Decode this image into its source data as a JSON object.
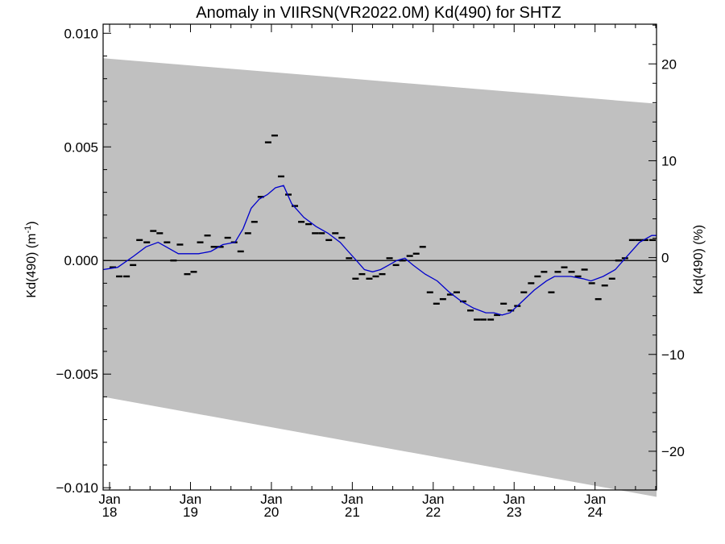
{
  "chart_data": {
    "type": "line",
    "title": "Anomaly in VIIRSN(VR2022.0M) Kd(490) for SHTZ",
    "ylabel_left": "Kd(490) (m",
    "ylabel_left_sup": "-1",
    "ylabel_left_close": ")",
    "ylabel_right": "Kd(490) (%)",
    "ylim_left": [
      -0.0101,
      0.0104
    ],
    "ylim_right": [
      -24.0,
      24.1
    ],
    "grid": false,
    "x_ticks": [
      {
        "t": 2018.0,
        "month": "Jan",
        "year": "18"
      },
      {
        "t": 2019.0,
        "month": "Jan",
        "year": "19"
      },
      {
        "t": 2020.0,
        "month": "Jan",
        "year": "20"
      },
      {
        "t": 2021.0,
        "month": "Jan",
        "year": "21"
      },
      {
        "t": 2022.0,
        "month": "Jan",
        "year": "22"
      },
      {
        "t": 2023.0,
        "month": "Jan",
        "year": "23"
      },
      {
        "t": 2024.0,
        "month": "Jan",
        "year": "24"
      }
    ],
    "x_range": [
      2017.92,
      2024.76
    ],
    "y_left_ticks": [
      {
        "v": 0.01,
        "label": "0.010"
      },
      {
        "v": 0.005,
        "label": "0.005"
      },
      {
        "v": 0.0,
        "label": "0.000"
      },
      {
        "v": -0.005,
        "label": "−0.005"
      },
      {
        "v": -0.01,
        "label": "−0.010"
      }
    ],
    "y_right_ticks": [
      {
        "v": 20,
        "label": "20"
      },
      {
        "v": 10,
        "label": "10"
      },
      {
        "v": 0,
        "label": "0"
      },
      {
        "v": -10,
        "label": "−10"
      },
      {
        "v": -20,
        "label": "−20"
      }
    ],
    "band": {
      "color": "#c0c0c0",
      "upper": [
        [
          2017.92,
          0.0089
        ],
        [
          2024.76,
          0.0069
        ]
      ],
      "lower": [
        [
          2017.92,
          -0.006
        ],
        [
          2024.76,
          -0.0104
        ]
      ]
    },
    "zero_line": 0.0,
    "monthly_anomaly": {
      "color": "#000000",
      "x": [
        2018.04,
        2018.12,
        2018.21,
        2018.29,
        2018.37,
        2018.46,
        2018.54,
        2018.62,
        2018.71,
        2018.79,
        2018.87,
        2018.96,
        2019.04,
        2019.12,
        2019.21,
        2019.29,
        2019.37,
        2019.46,
        2019.54,
        2019.62,
        2019.71,
        2019.79,
        2019.87,
        2019.96,
        2020.04,
        2020.12,
        2020.21,
        2020.29,
        2020.37,
        2020.46,
        2020.54,
        2020.62,
        2020.71,
        2020.79,
        2020.87,
        2020.96,
        2021.04,
        2021.12,
        2021.21,
        2021.29,
        2021.37,
        2021.46,
        2021.54,
        2021.62,
        2021.71,
        2021.79,
        2021.87,
        2021.96,
        2022.04,
        2022.12,
        2022.21,
        2022.29,
        2022.37,
        2022.46,
        2022.54,
        2022.62,
        2022.71,
        2022.79,
        2022.87,
        2022.96,
        2023.04,
        2023.12,
        2023.21,
        2023.29,
        2023.37,
        2023.46,
        2023.54,
        2023.62,
        2023.71,
        2023.79,
        2023.87,
        2023.96,
        2024.04,
        2024.12,
        2024.21,
        2024.29,
        2024.37,
        2024.46,
        2024.54,
        2024.62,
        2024.71
      ],
      "y": [
        -0.0003,
        -0.0007,
        -0.0007,
        -0.0002,
        0.0009,
        0.0008,
        0.0013,
        0.0012,
        0.0008,
        0.0,
        0.0007,
        -0.0006,
        -0.0005,
        0.0008,
        0.0011,
        0.0006,
        0.0006,
        0.001,
        0.0008,
        0.0004,
        0.0012,
        0.0017,
        0.0028,
        0.0052,
        0.0055,
        0.0037,
        0.0029,
        0.0024,
        0.0017,
        0.0016,
        0.0012,
        0.0012,
        0.0009,
        0.0012,
        0.001,
        0.0001,
        -0.0008,
        -0.0006,
        -0.0008,
        -0.0007,
        -0.0006,
        0.0001,
        -0.0002,
        0.0,
        0.0002,
        0.0003,
        0.0006,
        -0.0014,
        -0.0019,
        -0.0017,
        -0.0015,
        -0.0014,
        -0.0018,
        -0.0022,
        -0.0026,
        -0.0026,
        -0.0026,
        -0.0024,
        -0.0019,
        -0.0022,
        -0.002,
        -0.0014,
        -0.001,
        -0.0007,
        -0.0005,
        -0.0014,
        -0.0005,
        -0.0003,
        -0.0005,
        -0.0007,
        -0.0004,
        -0.001,
        -0.0017,
        -0.0011,
        -0.0008,
        -0.0,
        0.0001,
        0.0009,
        0.0009,
        0.0009,
        0.0009
      ]
    },
    "smoothed": {
      "color": "#0000cc",
      "x": [
        2017.92,
        2018.1,
        2018.3,
        2018.45,
        2018.6,
        2018.7,
        2018.85,
        2019.0,
        2019.1,
        2019.25,
        2019.4,
        2019.55,
        2019.65,
        2019.75,
        2019.85,
        2019.95,
        2020.05,
        2020.15,
        2020.25,
        2020.4,
        2020.55,
        2020.7,
        2020.85,
        2020.95,
        2021.05,
        2021.15,
        2021.25,
        2021.35,
        2021.45,
        2021.55,
        2021.65,
        2021.75,
        2021.9,
        2022.05,
        2022.2,
        2022.35,
        2022.5,
        2022.65,
        2022.75,
        2022.85,
        2022.95,
        2023.1,
        2023.25,
        2023.4,
        2023.5,
        2023.6,
        2023.7,
        2023.85,
        2023.95,
        2024.1,
        2024.25,
        2024.4,
        2024.55,
        2024.7,
        2024.76
      ],
      "y": [
        -0.0004,
        -0.0003,
        0.0002,
        0.0006,
        0.0008,
        0.0006,
        0.0003,
        0.0003,
        0.0003,
        0.0004,
        0.0007,
        0.0008,
        0.0014,
        0.0023,
        0.0027,
        0.0029,
        0.0032,
        0.0033,
        0.0025,
        0.0019,
        0.0015,
        0.0012,
        0.0008,
        0.0004,
        0.0,
        -0.0004,
        -0.0005,
        -0.0004,
        -0.0002,
        0.0,
        0.0001,
        -0.0002,
        -0.0006,
        -0.0009,
        -0.0014,
        -0.0018,
        -0.0021,
        -0.0023,
        -0.0023,
        -0.0024,
        -0.0023,
        -0.0018,
        -0.0013,
        -0.0009,
        -0.0007,
        -0.0007,
        -0.0007,
        -0.0008,
        -0.0009,
        -0.0007,
        -0.0004,
        0.0002,
        0.0008,
        0.0011,
        0.0011
      ]
    }
  }
}
